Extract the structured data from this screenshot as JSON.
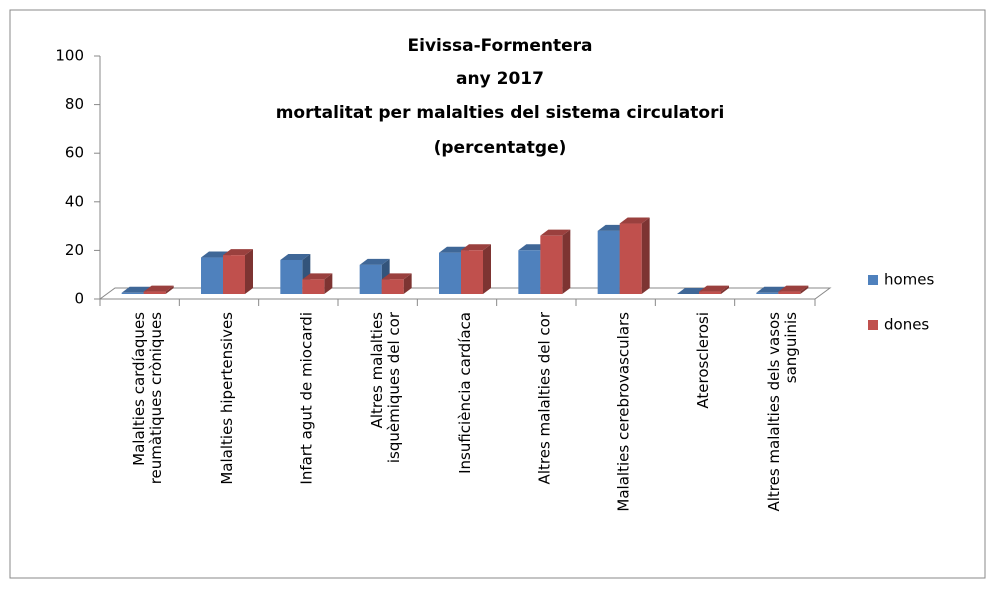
{
  "chart_data": {
    "type": "bar3d",
    "title": [
      "Eivissa-Formentera",
      "any 2017",
      "mortalitat per malalties del sistema circulatori",
      "(percentatge)"
    ],
    "categories": [
      "Malalties cardíaques\nreumàtiques cròniques",
      "Malalties hipertensives",
      "Infart agut de miocardi",
      "Altres malalties\nisquèmiques del cor",
      "Insuficiència cardíaca",
      "Altres malalties del cor",
      "Malalties cerebrovasculars",
      "Aterosclerosi",
      "Altres malalties dels vasos\nsanguinis"
    ],
    "series": [
      {
        "name": "homes",
        "color": "#4f81bd",
        "values": [
          0.5,
          15,
          14,
          12,
          17,
          18,
          26,
          0,
          0.5
        ]
      },
      {
        "name": "dones",
        "color": "#c0504d",
        "values": [
          1,
          16,
          6,
          6,
          18,
          24,
          29,
          1,
          1
        ]
      }
    ],
    "ylim": [
      0,
      100
    ],
    "yticks": [
      0,
      20,
      40,
      60,
      80,
      100
    ],
    "legend": "right"
  }
}
